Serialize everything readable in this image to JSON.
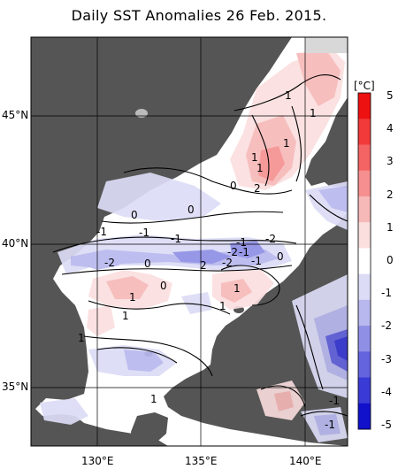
{
  "title": "Daily SST Anomalies 26 Feb. 2015.",
  "axes": {
    "lat_labels": [
      "45°N",
      "40°N",
      "35°N"
    ],
    "lon_labels": [
      "130°E",
      "135°E",
      "140°E"
    ]
  },
  "colorbar": {
    "unit": "[°C]",
    "ticks": [
      "5",
      "4",
      "3",
      "2",
      "1",
      "0",
      "-1",
      "-2",
      "-3",
      "-4",
      "-5"
    ],
    "colors": [
      "#ee1111",
      "#f23a3a",
      "#f46464",
      "#f68f8f",
      "#f7b8b8",
      "#fbdede",
      "#ffffff",
      "#dcdcf6",
      "#b8b8ee",
      "#8f8fe6",
      "#6464de",
      "#3a3ad6",
      "#1111cc"
    ]
  },
  "map": {
    "land_color": "#555555",
    "sea_neutral_color": "#ffffff",
    "grid_color": "#000000",
    "contour_labels": [
      "1",
      "1",
      "1",
      "1",
      "2",
      "1",
      "0",
      "0",
      "0",
      "-1",
      "-1",
      "-1",
      "-1",
      "-2",
      "-2",
      "-2",
      "-2",
      "-1",
      "1",
      "1",
      "0",
      "0",
      "2",
      "1",
      "1",
      "1",
      "-1",
      "1",
      "0",
      "-1",
      "-1"
    ]
  }
}
